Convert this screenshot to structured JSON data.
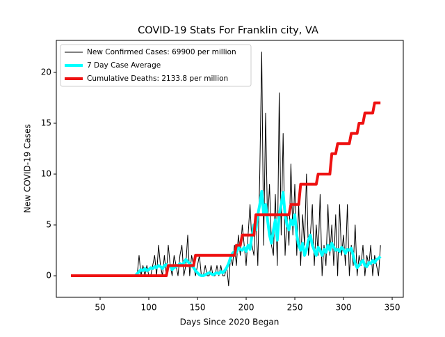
{
  "chart_data": {
    "type": "line",
    "title": "COVID-19 Stats For Franklin city, VA",
    "xlabel": "Days Since 2020 Began",
    "ylabel": "New COVID-19 Cases",
    "x": [
      20,
      22,
      24,
      26,
      28,
      30,
      32,
      34,
      36,
      38,
      40,
      42,
      44,
      46,
      48,
      50,
      52,
      54,
      56,
      58,
      60,
      62,
      64,
      66,
      68,
      70,
      72,
      74,
      76,
      78,
      80,
      82,
      84,
      86,
      88,
      90,
      92,
      94,
      96,
      98,
      100,
      102,
      104,
      106,
      108,
      110,
      112,
      114,
      116,
      118,
      120,
      122,
      124,
      126,
      128,
      130,
      132,
      134,
      136,
      138,
      140,
      142,
      144,
      146,
      148,
      150,
      152,
      154,
      156,
      158,
      160,
      162,
      164,
      166,
      168,
      170,
      172,
      174,
      176,
      178,
      180,
      182,
      184,
      186,
      188,
      190,
      192,
      194,
      196,
      198,
      200,
      202,
      204,
      206,
      208,
      210,
      212,
      214,
      216,
      218,
      220,
      222,
      224,
      226,
      228,
      230,
      232,
      234,
      236,
      238,
      240,
      242,
      244,
      246,
      248,
      250,
      252,
      254,
      256,
      258,
      260,
      262,
      264,
      266,
      268,
      270,
      272,
      274,
      276,
      278,
      280,
      282,
      284,
      286,
      288,
      290,
      292,
      294,
      296,
      298,
      300,
      302,
      304,
      306,
      308,
      310,
      312,
      314,
      316,
      318,
      320,
      322,
      324,
      326,
      328,
      330,
      332,
      334,
      336,
      338
    ],
    "series": [
      {
        "name": "New Confirmed Cases: 69900 per million",
        "color": "#000000",
        "width": 1,
        "values": [
          0,
          0,
          0,
          0,
          0,
          0,
          0,
          0,
          0,
          0,
          0,
          0,
          0,
          0,
          0,
          0,
          0,
          0,
          0,
          0,
          0,
          0,
          0,
          0,
          0,
          0,
          0,
          0,
          0,
          0,
          0,
          0,
          0,
          0,
          0,
          2,
          0,
          1,
          0,
          1,
          0,
          0,
          1,
          2,
          0,
          3,
          1,
          0,
          2,
          0,
          3,
          1,
          0,
          2,
          1,
          0,
          2,
          3,
          0,
          1,
          4,
          0,
          2,
          1,
          0,
          1,
          2,
          0,
          0,
          1,
          0,
          0,
          1,
          0,
          0,
          1,
          0,
          1,
          0,
          0,
          1,
          -1,
          2,
          1,
          3,
          1,
          4,
          2,
          5,
          3,
          1,
          4,
          7,
          3,
          2,
          6,
          1,
          10,
          22,
          3,
          16,
          5,
          9,
          3,
          2,
          8,
          1,
          18,
          4,
          14,
          2,
          6,
          3,
          11,
          4,
          9,
          2,
          7,
          1,
          6,
          3,
          10,
          2,
          4,
          7,
          1,
          5,
          2,
          8,
          0,
          3,
          1,
          7,
          2,
          5,
          1,
          6,
          0,
          7,
          2,
          4,
          1,
          7,
          0,
          3,
          1,
          5,
          0,
          2,
          1,
          3,
          0,
          2,
          1,
          3,
          0,
          2,
          1,
          0,
          3
        ]
      },
      {
        "name": "7 Day Case Average",
        "color": "#00ffff",
        "width": 4,
        "values": [
          0,
          0,
          0,
          0,
          0,
          0,
          0,
          0,
          0,
          0,
          0,
          0,
          0,
          0,
          0,
          0,
          0,
          0,
          0,
          0,
          0,
          0,
          0,
          0,
          0,
          0,
          0,
          0,
          0,
          0,
          0,
          0,
          0,
          0,
          0.2,
          0.4,
          0.6,
          0.5,
          0.7,
          0.5,
          0.6,
          0.8,
          0.7,
          0.9,
          0.8,
          1.0,
          0.9,
          0.7,
          1.0,
          1.1,
          0.9,
          1.0,
          0.6,
          0.8,
          0.9,
          1.0,
          1.2,
          1.0,
          1.3,
          1.6,
          1.4,
          1.2,
          1.0,
          0.8,
          0.5,
          0.3,
          0.1,
          0,
          0,
          0.1,
          0.2,
          0.3,
          0.2,
          0.1,
          0.2,
          0.3,
          0.2,
          0.4,
          0.3,
          0.5,
          0.8,
          1.2,
          1.8,
          2.2,
          2.4,
          2.3,
          2.8,
          2.6,
          2.5,
          2.8,
          2.4,
          3.0,
          2.6,
          4.0,
          5.0,
          4.5,
          6.0,
          7.0,
          8.3,
          6.0,
          7.0,
          5.5,
          4.0,
          3.2,
          4.5,
          5.5,
          3.5,
          6.0,
          7.0,
          8.2,
          6.0,
          5.0,
          4.5,
          5.5,
          5.0,
          6.0,
          4.0,
          3.0,
          2.5,
          3.2,
          2.0,
          2.6,
          3.5,
          4.0,
          3.0,
          2.5,
          2.0,
          2.8,
          2.5,
          2.0,
          2.6,
          2.3,
          3.0,
          2.5,
          3.2,
          2.8,
          2.5,
          2.6,
          2.4,
          2.8,
          2.6,
          2.2,
          2.6,
          2.5,
          2.7,
          2.0,
          1.2,
          0.8,
          1.0,
          1.3,
          1.5,
          1.0,
          0.9,
          1.3,
          1.2,
          1.5,
          1.3,
          1.6,
          1.7,
          1.9
        ]
      },
      {
        "name": "Cumulative Deaths: 2133.8 per million",
        "color": "#ee1111",
        "width": 4,
        "values": [
          0,
          0,
          0,
          0,
          0,
          0,
          0,
          0,
          0,
          0,
          0,
          0,
          0,
          0,
          0,
          0,
          0,
          0,
          0,
          0,
          0,
          0,
          0,
          0,
          0,
          0,
          0,
          0,
          0,
          0,
          0,
          0,
          0,
          0,
          0,
          0,
          0,
          0,
          0,
          0,
          0,
          0,
          0,
          0,
          0,
          0,
          0,
          0,
          0,
          0,
          1,
          1,
          1,
          1,
          1,
          1,
          1,
          1,
          1,
          1,
          1,
          1,
          1,
          1,
          2,
          2,
          2,
          2,
          2,
          2,
          2,
          2,
          2,
          2,
          2,
          2,
          2,
          2,
          2,
          2,
          2,
          2,
          2,
          2,
          2,
          3,
          3,
          3,
          4,
          4,
          4,
          4,
          4,
          4,
          4,
          6,
          6,
          6,
          6,
          6,
          6,
          6,
          6,
          6,
          6,
          6,
          6,
          6,
          6,
          6,
          6,
          6,
          6,
          7,
          7,
          7,
          7,
          7,
          9,
          9,
          9,
          9,
          9,
          9,
          9,
          9,
          9,
          10,
          10,
          10,
          10,
          10,
          10,
          10,
          12,
          12,
          12,
          13,
          13,
          13,
          13,
          13,
          13,
          13,
          14,
          14,
          14,
          14,
          15,
          15,
          15,
          16,
          16,
          16,
          16,
          16,
          17,
          17,
          17,
          17
        ]
      }
    ],
    "xlim": [
      5,
      361.4
    ],
    "xticks": [
      50,
      100,
      150,
      200,
      250,
      300,
      350
    ],
    "ylim": [
      -2.12,
      23.15
    ],
    "yticks": [
      0,
      5,
      10,
      15,
      20
    ],
    "legend": "upper left"
  }
}
